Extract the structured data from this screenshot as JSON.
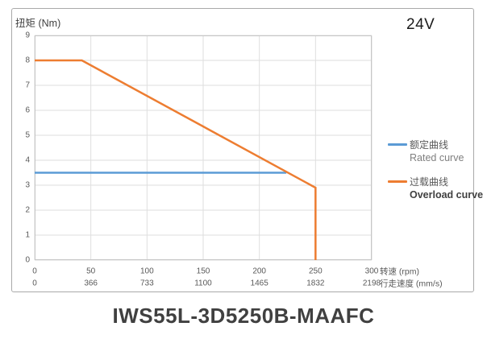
{
  "voltage_badge": "24V",
  "model_title": "IWS55L-3D5250B-MAAFC",
  "chart_data": {
    "type": "line",
    "grid": true,
    "legend_position": "right",
    "colors": {
      "rated": "#5B9BD5",
      "overload": "#ED7D31",
      "gridline": "#dedede",
      "plot_border": "#c6c6c6"
    },
    "y_axis": {
      "title": "扭矩 (Nm)",
      "min": 0,
      "max": 9,
      "tick_step": 1,
      "ticks": [
        0,
        1,
        2,
        3,
        4,
        5,
        6,
        7,
        8,
        9
      ]
    },
    "x_axis_primary": {
      "title": "转速 (rpm)",
      "min": 0,
      "max": 300,
      "ticks": [
        0,
        50,
        100,
        150,
        200,
        250,
        300
      ]
    },
    "x_axis_secondary": {
      "title": "行走速度 (mm/s)",
      "ticks": [
        0,
        366,
        733,
        1100,
        1465,
        1832,
        2198
      ]
    },
    "series": [
      {
        "name_zh": "额定曲线",
        "name_en": "Rated curve",
        "color": "#5B9BD5",
        "points": [
          [
            0,
            3.5
          ],
          [
            224,
            3.5
          ]
        ]
      },
      {
        "name_zh": "过载曲线",
        "name_en": "Overload curve",
        "color": "#ED7D31",
        "points": [
          [
            0,
            8
          ],
          [
            42,
            8
          ],
          [
            250,
            2.9
          ],
          [
            250,
            0
          ]
        ]
      }
    ]
  }
}
